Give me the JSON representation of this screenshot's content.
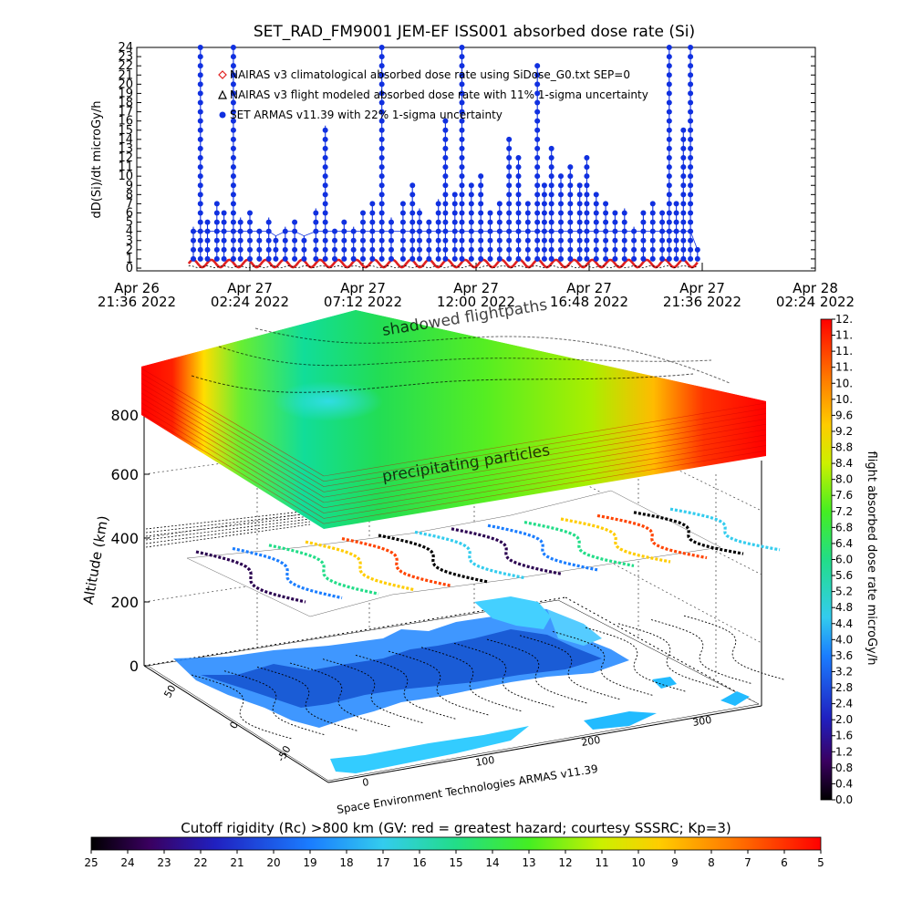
{
  "chart_data": [
    {
      "type": "scatter",
      "title": "SET_RAD_FM9001  JEM-EF ISS001 absorbed dose rate (Si)",
      "ylabel": "dD(Si)/dt microGy/h",
      "ylim": [
        0,
        24
      ],
      "yticks": [
        "0",
        "1",
        "2",
        "3",
        "4",
        "5",
        "6",
        "7",
        "8",
        "9",
        "10",
        "11",
        "12",
        "13",
        "14",
        "15",
        "16",
        "17",
        "18",
        "19",
        "20",
        "21",
        "22",
        "23",
        "24"
      ],
      "xlim_hours": [
        0,
        28.8
      ],
      "xticks": [
        {
          "line1": "Apr 26",
          "line2": "21:36 2022",
          "hour": 0
        },
        {
          "line1": "Apr 27",
          "line2": "02:24 2022",
          "hour": 4.8
        },
        {
          "line1": "Apr 27",
          "line2": "07:12 2022",
          "hour": 9.6
        },
        {
          "line1": "Apr 27",
          "line2": "12:00 2022",
          "hour": 14.4
        },
        {
          "line1": "Apr 27",
          "line2": "16:48 2022",
          "hour": 19.2
        },
        {
          "line1": "Apr 27",
          "line2": "21:36 2022",
          "hour": 24.0
        },
        {
          "line1": "Apr 28",
          "line2": "02:24 2022",
          "hour": 28.8
        }
      ],
      "legend": [
        {
          "label": "NAIRAS v3 climatological absorbed dose rate using SiDose_G0.txt SEP=0",
          "color": "#e02020",
          "marker": "diamond"
        },
        {
          "label": "NAIRAS v3 flight modeled absorbed dose rate with 11% 1-sigma uncertainty",
          "color": "#000000",
          "marker": "triangle"
        },
        {
          "label": "SET ARMAS v11.39 with 22% 1-sigma uncertainty",
          "color": "#1030e0",
          "marker": "circle"
        }
      ],
      "series": [
        {
          "name": "NAIRAS v3 climatological absorbed dose rate using SiDose_G0.txt SEP=0",
          "x": [
            2.2,
            23.8
          ],
          "y_min": 0.1,
          "y_max": 0.9,
          "period_hours": 0.77
        },
        {
          "name": "SET ARMAS v11.39 with 22% 1-sigma uncertainty",
          "x": [
            2.4,
            2.7,
            3.0,
            3.4,
            3.7,
            4.1,
            4.4,
            4.8,
            5.2,
            5.6,
            5.9,
            6.3,
            6.7,
            7.1,
            7.6,
            8.0,
            8.4,
            8.8,
            9.2,
            9.6,
            10.0,
            10.4,
            10.8,
            11.3,
            11.7,
            12.0,
            12.4,
            12.8,
            13.1,
            13.5,
            13.8,
            14.2,
            14.6,
            15.0,
            15.4,
            15.8,
            16.2,
            16.6,
            17.0,
            17.3,
            17.6,
            18.0,
            18.4,
            18.8,
            19.1,
            19.5,
            19.9,
            20.3,
            20.7,
            21.1,
            21.5,
            21.9,
            22.3,
            22.6,
            22.9,
            23.2,
            23.5,
            23.8
          ],
          "y": [
            4.5,
            24.0,
            5.0,
            7.0,
            6.0,
            24.0,
            5.5,
            6.0,
            4.0,
            5.5,
            3.5,
            4.5,
            5.0,
            3.5,
            6.5,
            15.5,
            4.0,
            5.0,
            4.5,
            6.0,
            7.0,
            24.0,
            5.5,
            7.0,
            9.0,
            6.5,
            5.0,
            7.5,
            16.0,
            8.0,
            24.0,
            9.0,
            10.0,
            6.0,
            7.0,
            14.0,
            12.0,
            7.0,
            22.0,
            9.0,
            13.0,
            10.0,
            11.0,
            9.0,
            12.0,
            8.0,
            7.0,
            6.0,
            6.5,
            4.5,
            6.0,
            7.0,
            6.0,
            24.0,
            7.0,
            15.0,
            24.0,
            2.0
          ]
        }
      ]
    },
    {
      "type": "heatmap",
      "xlabel": "",
      "ylabel": "Altitude (km)",
      "zticks": [
        "0",
        "200",
        "400",
        "600",
        "800"
      ],
      "longitude_ticks": [
        "0",
        "100",
        "200",
        "300"
      ],
      "latitude_ticks": [
        "50",
        "0",
        "-50"
      ],
      "annotations": [
        "shadowed flightpaths",
        "precipitating particles",
        "Space Environment Technologies ARMAS v11.39"
      ],
      "colorbar": {
        "title": "flight absorbed dose rate microGy/h",
        "ticks": [
          "0.0",
          "0.4",
          "0.8",
          "1.2",
          "1.6",
          "2.0",
          "2.4",
          "2.8",
          "3.2",
          "3.6",
          "4.0",
          "4.4",
          "4.8",
          "5.2",
          "5.6",
          "6.0",
          "6.4",
          "6.8",
          "7.2",
          "7.6",
          "8.0",
          "8.4",
          "8.8",
          "9.2",
          "9.6",
          "10.",
          "10.",
          "11.",
          "11.",
          "11.",
          "12."
        ]
      },
      "rigidity_colorbar": {
        "title": "Cutoff rigidity (Rc) >800 km (GV: red = greatest hazard; courtesy SSSRC; Kp=3)",
        "ticks": [
          "25",
          "24",
          "23",
          "22",
          "21",
          "20",
          "19",
          "18",
          "17",
          "16",
          "15",
          "14",
          "13",
          "12",
          "11",
          "10",
          "9",
          "8",
          "7",
          "6",
          "5"
        ]
      }
    }
  ]
}
